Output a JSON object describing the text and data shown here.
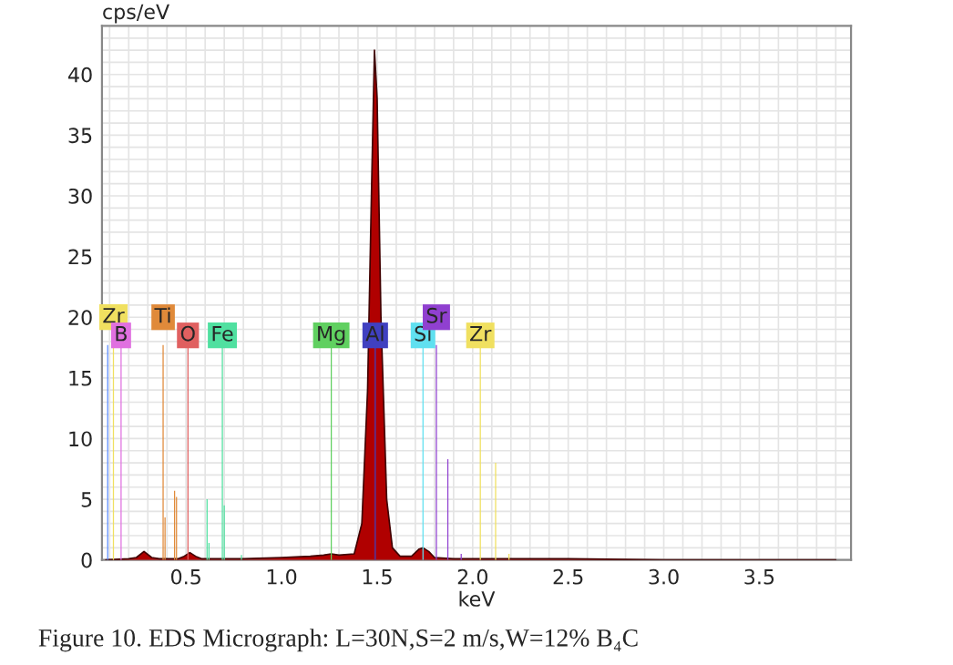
{
  "chart_data": {
    "type": "area",
    "xlabel": "keV",
    "ylabel": "cps/eV",
    "xlim": [
      0.06,
      3.98
    ],
    "ylim": [
      0,
      44
    ],
    "xticks": [
      0.5,
      {
        "value": 1,
        "label": "1.0"
      },
      1.5,
      {
        "value": 2,
        "label": "2.0"
      },
      2.5,
      {
        "value": 3,
        "label": "3.0"
      },
      3.5
    ],
    "yticks": [
      0,
      5,
      10,
      15,
      20,
      25,
      30,
      35,
      40
    ],
    "grid": true,
    "series": [
      {
        "color": "#b00000",
        "x": [
          0.08,
          0.2,
          0.24,
          0.28,
          0.32,
          0.36,
          0.46,
          0.49,
          0.52,
          0.55,
          0.58,
          0.7,
          0.8,
          1.0,
          1.15,
          1.22,
          1.26,
          1.3,
          1.38,
          1.42,
          1.45,
          1.47,
          1.486,
          1.5,
          1.52,
          1.55,
          1.58,
          1.62,
          1.68,
          1.72,
          1.74,
          1.77,
          1.8,
          1.9,
          2.1,
          2.5,
          3.0,
          3.9
        ],
        "values": [
          0,
          0.1,
          0.2,
          0.7,
          0.2,
          0.1,
          0.1,
          0.3,
          0.6,
          0.3,
          0.1,
          0.1,
          0.1,
          0.2,
          0.3,
          0.4,
          0.5,
          0.4,
          0.5,
          3,
          14,
          30,
          42,
          38,
          20,
          5,
          1,
          0.3,
          0.3,
          0.9,
          1.0,
          0.7,
          0.2,
          0.1,
          0.1,
          0.1,
          0,
          0
        ]
      },
      {
        "type": "bar",
        "color": "#5b8cff",
        "x": [
          0.09
        ],
        "values": [
          17.7
        ]
      },
      {
        "type": "bar",
        "color": "#f0e060",
        "x": [
          0.12,
          2.04,
          2.12,
          2.19
        ],
        "values": [
          17.7,
          17.7,
          8,
          0.5
        ]
      },
      {
        "type": "bar",
        "color": "#e070e0",
        "x": [
          0.16
        ],
        "values": [
          17.7
        ]
      },
      {
        "type": "bar",
        "color": "#e08a3a",
        "x": [
          0.38,
          0.39,
          0.44,
          0.45
        ],
        "values": [
          17.7,
          3.5,
          5.7,
          5.2
        ]
      },
      {
        "type": "bar",
        "color": "#e06060",
        "x": [
          0.51
        ],
        "values": [
          17.7
        ]
      },
      {
        "type": "bar",
        "color": "#50e0a0",
        "x": [
          0.61,
          0.62,
          0.69,
          0.7,
          0.79
        ],
        "values": [
          5.0,
          1.4,
          17.7,
          4.5,
          0.4
        ]
      },
      {
        "type": "bar",
        "color": "#60d060",
        "x": [
          1.26
        ],
        "values": [
          17.7
        ]
      },
      {
        "type": "bar",
        "color": "#4040c0",
        "x": [
          1.49
        ],
        "values": [
          17.7
        ]
      },
      {
        "type": "bar",
        "color": "#60e0f0",
        "x": [
          1.74
        ],
        "values": [
          17.7
        ]
      },
      {
        "type": "bar",
        "color": "#9040d0",
        "x": [
          1.81,
          1.87,
          1.94
        ],
        "values": [
          17.7,
          8.3,
          0.5
        ]
      }
    ],
    "annotations": [
      {
        "text": "Zr",
        "x": 0.12,
        "y": 20
      },
      {
        "text": "B",
        "x": 0.16,
        "y": 18.5
      },
      {
        "text": "Ti",
        "x": 0.38,
        "y": 20
      },
      {
        "text": "O",
        "x": 0.51,
        "y": 18.5
      },
      {
        "text": "Fe",
        "x": 0.69,
        "y": 18.5
      },
      {
        "text": "Mg",
        "x": 1.26,
        "y": 18.5
      },
      {
        "text": "Al",
        "x": 1.49,
        "y": 18.5
      },
      {
        "text": "Si",
        "x": 1.74,
        "y": 18.5
      },
      {
        "text": "Sr",
        "x": 1.81,
        "y": 20
      },
      {
        "text": "Zr",
        "x": 2.04,
        "y": 18.5
      },
      "Figure 10. EDS Micrograph: L=30N,S=2 m/s,W=12% B₄C"
    ]
  }
}
